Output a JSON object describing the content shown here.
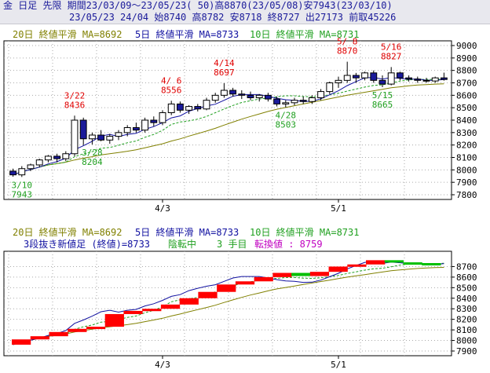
{
  "header": {
    "line1_a": "金 日足 先限 期間23/03/09～23/05/23( 50)高8870(23/05/08)安7943(23/03/10)",
    "line2": "23/05/23 24/04 始8740 高8782 安8718 終8727 出27173 前取45226"
  },
  "legend_top": {
    "ma20": "20日 終値平滑 MA=8692",
    "ma5": "5日 終値平滑 MA=8733",
    "ma10": "10日 終値平滑 MA=8731"
  },
  "legend_bottom": {
    "ma20": "20日 終値平滑 MA=8692",
    "ma5": "5日 終値平滑 MA=8733",
    "ma10": "10日 終値平滑 MA=8731",
    "three_line": "3段抜き新値足 (終値)=8733",
    "trend": "陰転中",
    "steps": "3 手目",
    "reversal": "転換値 : 8759"
  },
  "colors": {
    "ma20": "#808000",
    "ma5": "#1010a0",
    "ma10": "#20a020",
    "up": "#ff0000",
    "down": "#00c000",
    "annot_high": "#e00000",
    "annot_low": "#20a020",
    "candle_fill": "#1a1a9a"
  },
  "x_labels": [
    "4/3",
    "5/1"
  ],
  "chart_data": [
    {
      "type": "candlestick",
      "y_ticks": [
        "9000",
        "8900",
        "8800",
        "8700",
        "8600",
        "8500",
        "8400",
        "8300",
        "8200",
        "8100",
        "8000",
        "7900",
        "7800"
      ],
      "ylim": [
        7800,
        9000
      ],
      "candles": [
        [
          7990,
          8010,
          7945,
          7960
        ],
        [
          7960,
          8030,
          7943,
          8010
        ],
        [
          8010,
          8050,
          7990,
          8040
        ],
        [
          8040,
          8090,
          8020,
          8080
        ],
        [
          8080,
          8120,
          8060,
          8110
        ],
        [
          8110,
          8130,
          8060,
          8090
        ],
        [
          8090,
          8150,
          8070,
          8130
        ],
        [
          8130,
          8436,
          8110,
          8400
        ],
        [
          8400,
          8420,
          8200,
          8250
        ],
        [
          8250,
          8300,
          8204,
          8280
        ],
        [
          8280,
          8320,
          8230,
          8240
        ],
        [
          8240,
          8290,
          8210,
          8270
        ],
        [
          8270,
          8320,
          8240,
          8300
        ],
        [
          8300,
          8360,
          8270,
          8340
        ],
        [
          8340,
          8380,
          8300,
          8320
        ],
        [
          8320,
          8420,
          8300,
          8400
        ],
        [
          8400,
          8430,
          8350,
          8380
        ],
        [
          8380,
          8480,
          8360,
          8460
        ],
        [
          8460,
          8556,
          8440,
          8530
        ],
        [
          8530,
          8550,
          8460,
          8480
        ],
        [
          8480,
          8520,
          8450,
          8510
        ],
        [
          8510,
          8530,
          8470,
          8490
        ],
        [
          8490,
          8580,
          8480,
          8560
        ],
        [
          8560,
          8620,
          8540,
          8600
        ],
        [
          8600,
          8697,
          8580,
          8640
        ],
        [
          8640,
          8660,
          8590,
          8610
        ],
        [
          8610,
          8640,
          8570,
          8600
        ],
        [
          8600,
          8630,
          8560,
          8580
        ],
        [
          8580,
          8610,
          8550,
          8600
        ],
        [
          8600,
          8620,
          8550,
          8570
        ],
        [
          8570,
          8590,
          8510,
          8530
        ],
        [
          8530,
          8560,
          8503,
          8540
        ],
        [
          8540,
          8580,
          8520,
          8560
        ],
        [
          8560,
          8590,
          8530,
          8550
        ],
        [
          8550,
          8600,
          8530,
          8580
        ],
        [
          8580,
          8650,
          8560,
          8630
        ],
        [
          8630,
          8710,
          8610,
          8700
        ],
        [
          8700,
          8750,
          8660,
          8720
        ],
        [
          8720,
          8870,
          8700,
          8760
        ],
        [
          8760,
          8780,
          8700,
          8740
        ],
        [
          8740,
          8790,
          8720,
          8780
        ],
        [
          8780,
          8800,
          8700,
          8720
        ],
        [
          8720,
          8760,
          8665,
          8690
        ],
        [
          8690,
          8827,
          8680,
          8780
        ],
        [
          8780,
          8790,
          8720,
          8740
        ],
        [
          8740,
          8760,
          8710,
          8730
        ],
        [
          8730,
          8750,
          8700,
          8720
        ],
        [
          8720,
          8740,
          8700,
          8715
        ],
        [
          8715,
          8750,
          8700,
          8740
        ],
        [
          8740,
          8782,
          8718,
          8727
        ]
      ],
      "ma5": [
        7960,
        7985,
        8003,
        8022,
        8048,
        8066,
        8094,
        8162,
        8194,
        8230,
        8272,
        8286,
        8268,
        8286,
        8294,
        8327,
        8348,
        8380,
        8418,
        8434,
        8472,
        8494,
        8514,
        8528,
        8560,
        8592,
        8606,
        8606,
        8606,
        8592,
        8576,
        8564,
        8560,
        8550,
        8552,
        8572,
        8604,
        8636,
        8678,
        8710,
        8740,
        8744,
        8730,
        8742,
        8736,
        8728,
        8732,
        8721,
        8721,
        8727
      ],
      "ma10": [
        7960,
        7985,
        8003,
        8022,
        8040,
        8050,
        8062,
        8106,
        8130,
        8146,
        8174,
        8180,
        8198,
        8218,
        8232,
        8262,
        8285,
        8318,
        8366,
        8385,
        8394,
        8408,
        8430,
        8460,
        8490,
        8518,
        8542,
        8556,
        8570,
        8578,
        8588,
        8596,
        8596,
        8590,
        8588,
        8594,
        8604,
        8616,
        8634,
        8650,
        8666,
        8679,
        8684,
        8698,
        8714,
        8724,
        8728,
        8728,
        8728,
        8731
      ],
      "ma20": [
        7960,
        7985,
        8003,
        8022,
        8040,
        8050,
        8062,
        8080,
        8094,
        8106,
        8120,
        8130,
        8140,
        8150,
        8162,
        8178,
        8194,
        8210,
        8232,
        8250,
        8272,
        8292,
        8312,
        8334,
        8360,
        8384,
        8408,
        8430,
        8450,
        8470,
        8488,
        8502,
        8516,
        8530,
        8544,
        8558,
        8572,
        8586,
        8600,
        8612,
        8624,
        8636,
        8648,
        8660,
        8668,
        8676,
        8682,
        8686,
        8690,
        8692
      ],
      "annotations": [
        {
          "date": "3/10",
          "value": "7943",
          "kind": "low",
          "idx": 1
        },
        {
          "date": "3/22",
          "value": "8436",
          "kind": "high",
          "idx": 7
        },
        {
          "date": "3/28",
          "value": "8204",
          "kind": "low",
          "idx": 9
        },
        {
          "date": "4/ 6",
          "value": "8556",
          "kind": "high",
          "idx": 18
        },
        {
          "date": "4/14",
          "value": "8697",
          "kind": "high",
          "idx": 24
        },
        {
          "date": "4/28",
          "value": "8503",
          "kind": "low",
          "idx": 31
        },
        {
          "date": "5/ 8",
          "value": "8870",
          "kind": "high",
          "idx": 38
        },
        {
          "date": "5/15",
          "value": "8665",
          "kind": "low",
          "idx": 42
        },
        {
          "date": "5/16",
          "value": "8827",
          "kind": "high",
          "idx": 43
        }
      ]
    },
    {
      "type": "three-line-break",
      "y_ticks": [
        "8700",
        "8600",
        "8500",
        "8400",
        "8300",
        "8200",
        "8100",
        "8000",
        "7900"
      ],
      "ylim": [
        7900,
        8800
      ],
      "bricks": [
        {
          "from": 7960,
          "to": 8010,
          "dir": "up"
        },
        {
          "from": 8010,
          "to": 8040,
          "dir": "up"
        },
        {
          "from": 8040,
          "to": 8080,
          "dir": "up"
        },
        {
          "from": 8080,
          "to": 8110,
          "dir": "up"
        },
        {
          "from": 8110,
          "to": 8130,
          "dir": "up"
        },
        {
          "from": 8130,
          "to": 8250,
          "dir": "up"
        },
        {
          "from": 8250,
          "to": 8280,
          "dir": "up"
        },
        {
          "from": 8280,
          "to": 8300,
          "dir": "up"
        },
        {
          "from": 8300,
          "to": 8340,
          "dir": "up"
        },
        {
          "from": 8340,
          "to": 8400,
          "dir": "up"
        },
        {
          "from": 8400,
          "to": 8460,
          "dir": "up"
        },
        {
          "from": 8460,
          "to": 8530,
          "dir": "up"
        },
        {
          "from": 8530,
          "to": 8560,
          "dir": "up"
        },
        {
          "from": 8560,
          "to": 8600,
          "dir": "up"
        },
        {
          "from": 8600,
          "to": 8640,
          "dir": "up"
        },
        {
          "from": 8640,
          "to": 8610,
          "dir": "down"
        },
        {
          "from": 8610,
          "to": 8650,
          "dir": "up"
        },
        {
          "from": 8650,
          "to": 8700,
          "dir": "up"
        },
        {
          "from": 8700,
          "to": 8720,
          "dir": "up"
        },
        {
          "from": 8720,
          "to": 8760,
          "dir": "up"
        },
        {
          "from": 8760,
          "to": 8740,
          "dir": "down"
        },
        {
          "from": 8740,
          "to": 8733,
          "dir": "down"
        },
        {
          "from": 8733,
          "to": 8727,
          "dir": "down"
        }
      ]
    }
  ]
}
